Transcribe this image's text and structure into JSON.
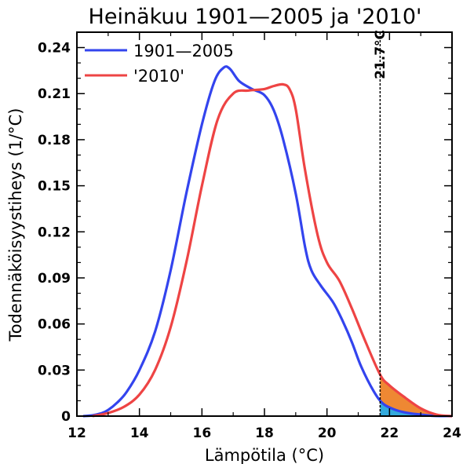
{
  "chart_data": {
    "type": "line",
    "title": "Heinäkuu 1901—2005 ja '2010'",
    "xlabel": "Lämpötila (°C)",
    "ylabel": "Todennäköisyystiheys (1/°C)",
    "xlim": [
      12,
      24
    ],
    "ylim": [
      0,
      0.25
    ],
    "xticks": [
      12,
      14,
      16,
      18,
      20,
      22,
      24
    ],
    "xtick_labels": [
      "12",
      "14",
      "16",
      "18",
      "20",
      "22",
      "24"
    ],
    "yticks": [
      0,
      0.03,
      0.06,
      0.09,
      0.12,
      0.15,
      0.18,
      0.21,
      0.24
    ],
    "ytick_labels": [
      "0",
      "0.03",
      "0.06",
      "0.09",
      "0.12",
      "0.15",
      "0.18",
      "0.21",
      "0.24"
    ],
    "legend_position": "top-left",
    "threshold": {
      "x": 21.7,
      "label": "21.7°C"
    },
    "series": [
      {
        "name": "1901—2005",
        "color": "#3344ee",
        "x": [
          12.2,
          12.5,
          12.8,
          13.0,
          13.3,
          13.6,
          14.0,
          14.5,
          15.0,
          15.5,
          16.0,
          16.4,
          16.7,
          16.9,
          17.2,
          17.6,
          18.0,
          18.3,
          18.6,
          19.0,
          19.3,
          19.5,
          19.8,
          20.2,
          20.5,
          20.8,
          21.1,
          21.5,
          21.8,
          22.2,
          22.6,
          23.0,
          23.4,
          24.0
        ],
        "y": [
          0.0,
          0.0005,
          0.002,
          0.004,
          0.009,
          0.016,
          0.03,
          0.055,
          0.095,
          0.145,
          0.19,
          0.218,
          0.227,
          0.226,
          0.218,
          0.213,
          0.209,
          0.199,
          0.18,
          0.145,
          0.11,
          0.095,
          0.085,
          0.074,
          0.062,
          0.048,
          0.032,
          0.016,
          0.008,
          0.004,
          0.002,
          0.001,
          0.0002,
          0.0
        ]
      },
      {
        "name": "'2010'",
        "color": "#ee4444",
        "x": [
          12.5,
          13.0,
          13.5,
          14.0,
          14.5,
          15.0,
          15.5,
          16.0,
          16.5,
          17.0,
          17.5,
          18.0,
          18.3,
          18.6,
          18.8,
          19.0,
          19.3,
          19.7,
          20.0,
          20.4,
          20.8,
          21.2,
          21.7,
          22.0,
          22.5,
          23.0,
          23.5,
          24.0
        ],
        "y": [
          0.0,
          0.002,
          0.006,
          0.014,
          0.03,
          0.058,
          0.1,
          0.15,
          0.193,
          0.21,
          0.212,
          0.213,
          0.215,
          0.216,
          0.213,
          0.2,
          0.16,
          0.118,
          0.1,
          0.088,
          0.07,
          0.05,
          0.027,
          0.02,
          0.012,
          0.005,
          0.001,
          0.0
        ]
      }
    ],
    "shading": {
      "from_x": 21.7,
      "fill_2010": "#ee8833",
      "fill_1901_2005": "#33aadd"
    }
  }
}
